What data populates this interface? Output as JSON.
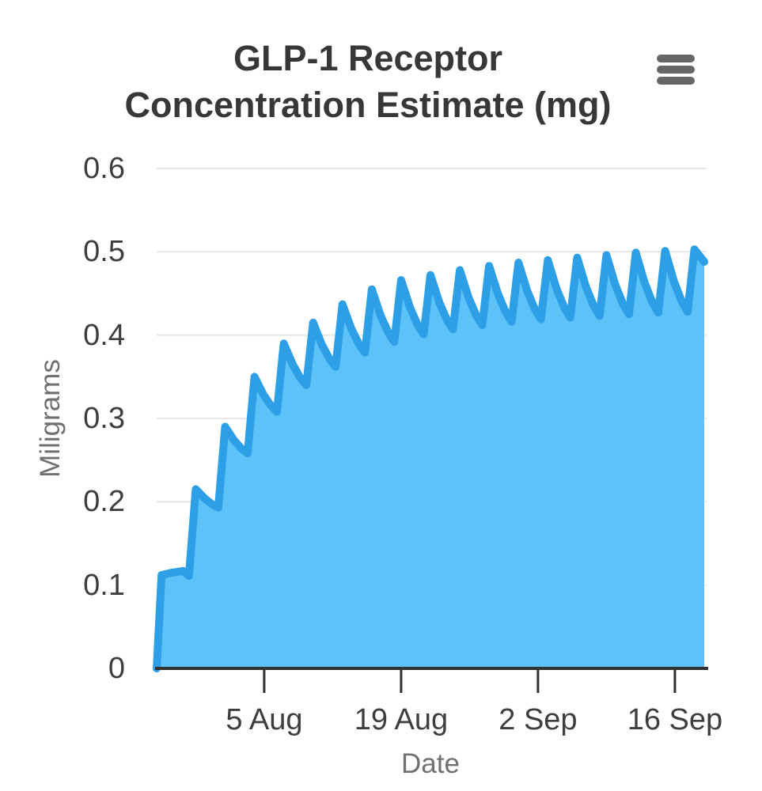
{
  "header": {
    "title_lines": [
      "GLP-1 Receptor",
      "Concentration Estimate (mg)"
    ]
  },
  "menu": {
    "icon": "hamburger-menu-icon",
    "bars": 3
  },
  "colors": {
    "line": "#2d9fe6",
    "fill": "#5cc2f8",
    "grid": "#e7e7e7",
    "axis_line": "#323232",
    "tick_label": "#3e3e3e",
    "axis_title": "#707070",
    "title": "#373737",
    "menu": "#666666",
    "background": "#ffffff"
  },
  "chart_data": {
    "type": "area",
    "title": "GLP-1 Receptor Concentration Estimate (mg)",
    "xlabel": "Date",
    "ylabel": "Miligrams",
    "ylim": [
      0,
      0.6
    ],
    "y_ticks": [
      "0",
      "0.1",
      "0.2",
      "0.3",
      "0.4",
      "0.5",
      "0.6"
    ],
    "y_tick_values": [
      0,
      0.1,
      0.2,
      0.3,
      0.4,
      0.5,
      0.6
    ],
    "grid": "horizontal-only",
    "legend": "none",
    "x_axis_span_days": [
      0,
      56
    ],
    "x_ticks": [
      {
        "label": "5 Aug",
        "day": 11
      },
      {
        "label": "19 Aug",
        "day": 25
      },
      {
        "label": "2 Sep",
        "day": 39
      },
      {
        "label": "16 Sep",
        "day": 53
      }
    ],
    "series": [
      {
        "name": "GLP-1 receptor concentration estimate (mg)",
        "pattern": "repeated-dose sawtooth accumulation",
        "initial_points": [
          [
            0,
            0
          ],
          [
            0.5,
            0.112
          ],
          [
            1.6,
            0.115
          ],
          [
            2.7,
            0.117
          ],
          [
            3.3,
            0.111
          ]
        ],
        "dose_interval_days": 3,
        "first_peak_day": 4,
        "rise_days": 0.7,
        "decay_days": 2.3,
        "peaks": [
          0.215,
          0.29,
          0.35,
          0.39,
          0.415,
          0.437,
          0.455,
          0.466,
          0.472,
          0.478,
          0.483,
          0.487,
          0.49,
          0.493,
          0.496,
          0.499,
          0.501,
          0.503
        ],
        "troughs": [
          0.193,
          0.258,
          0.308,
          0.34,
          0.362,
          0.379,
          0.392,
          0.401,
          0.407,
          0.412,
          0.416,
          0.419,
          0.421,
          0.423,
          0.425,
          0.427,
          0.428,
          0.43
        ],
        "end_point": [
          56,
          0.488
        ]
      }
    ]
  }
}
